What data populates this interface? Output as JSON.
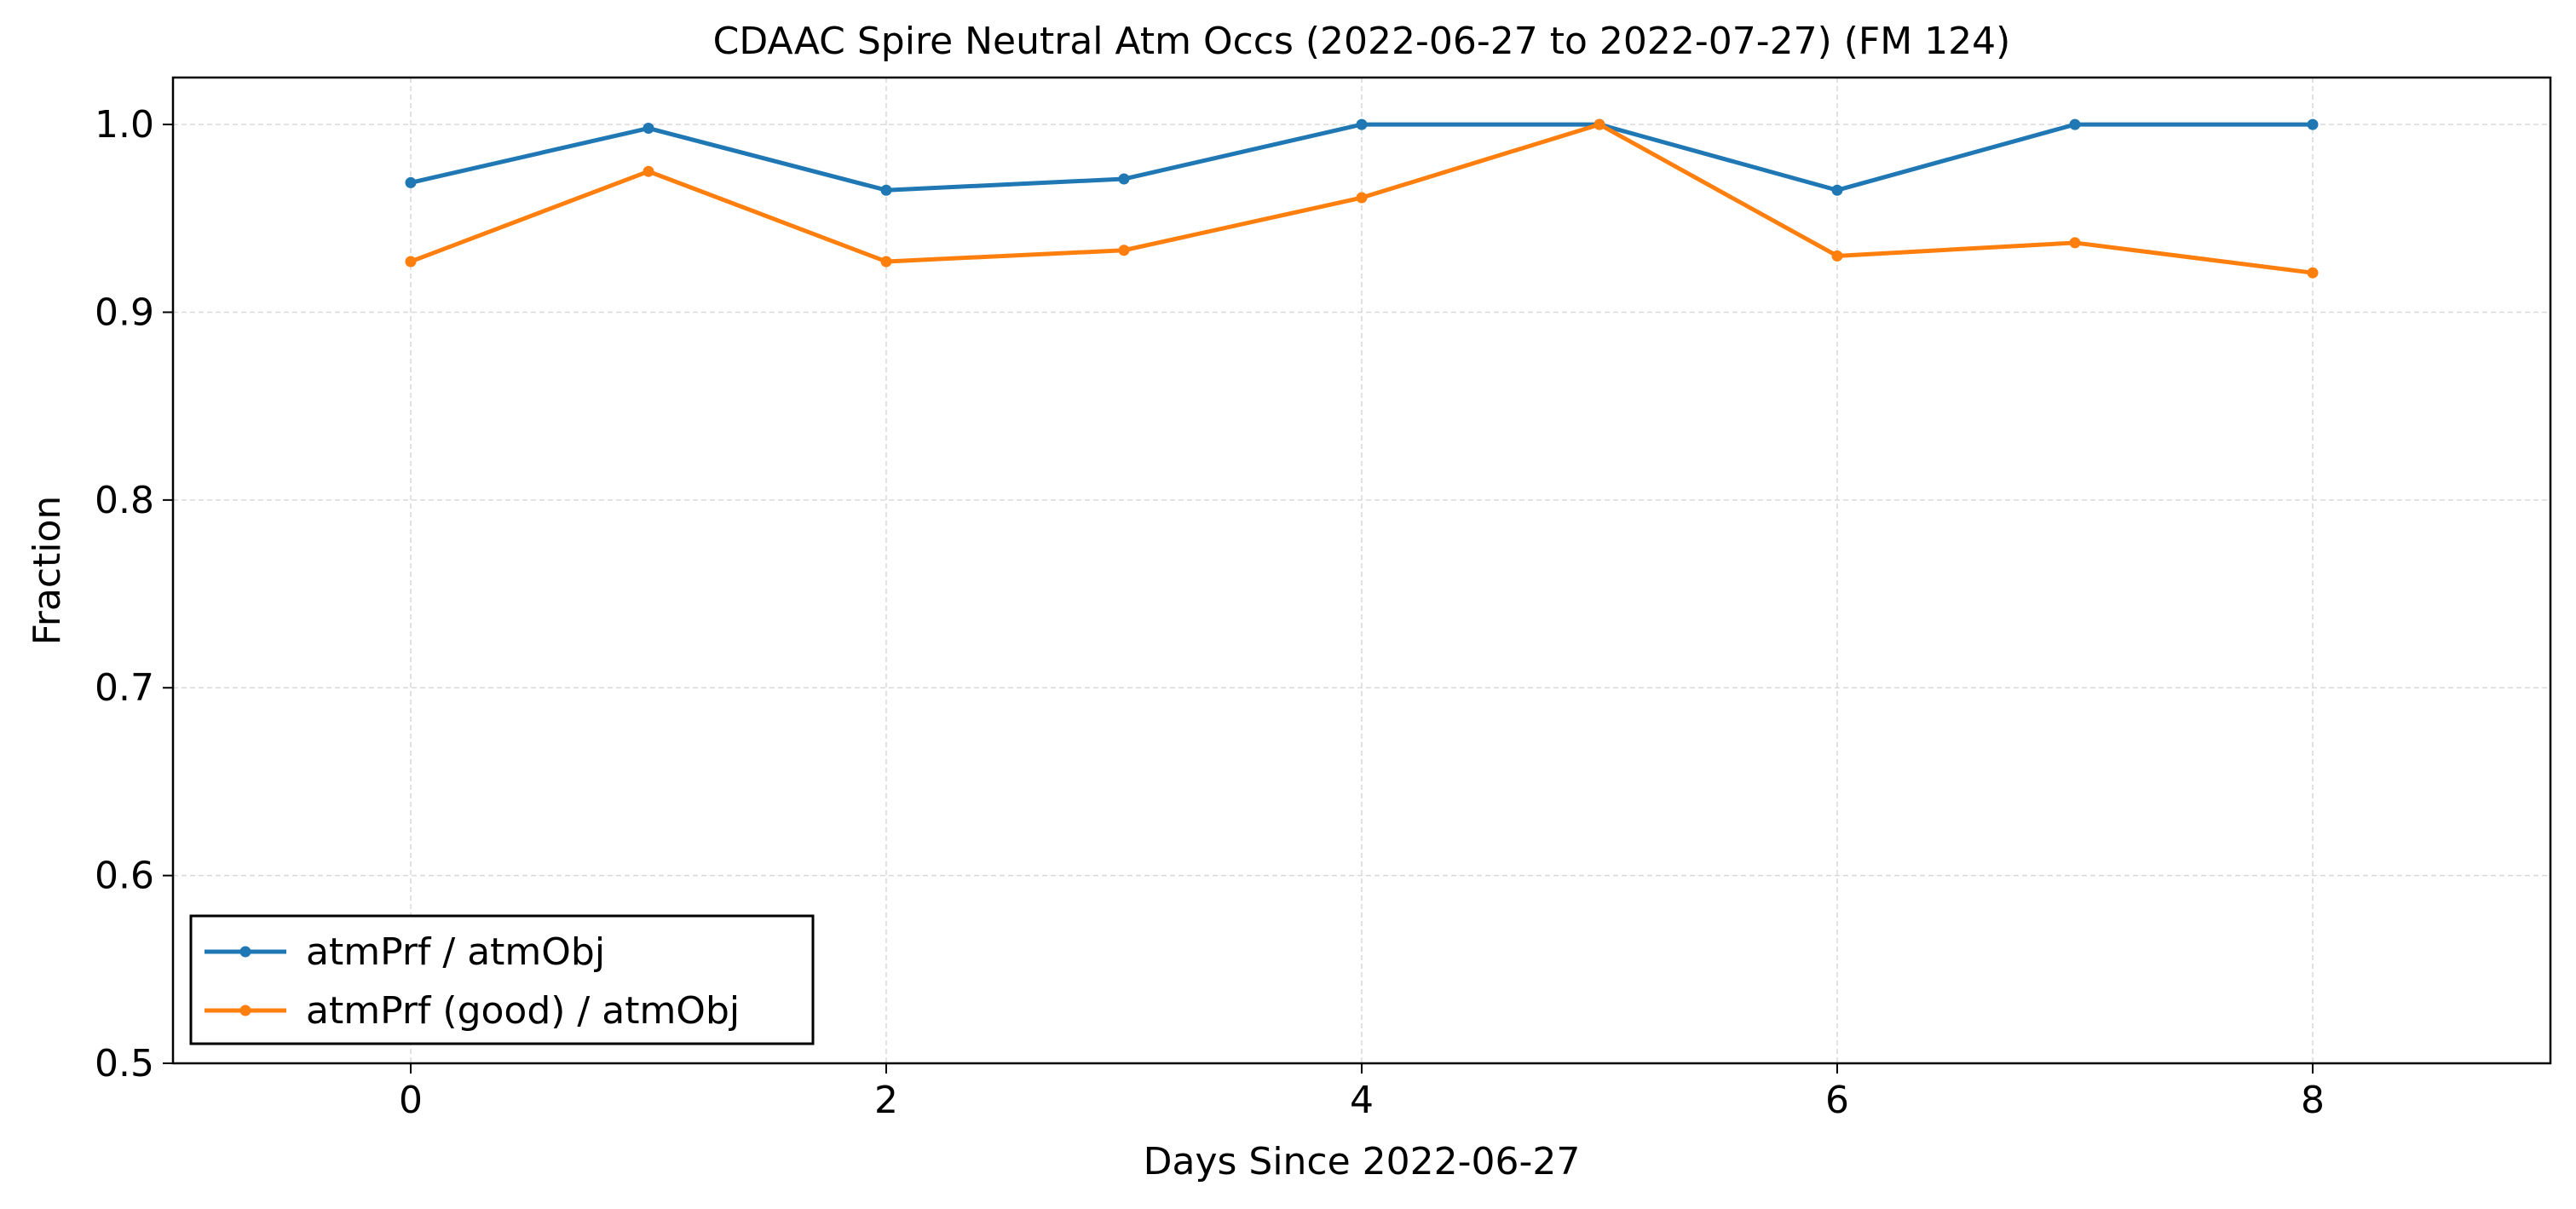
{
  "chart_data": {
    "type": "line",
    "title": "CDAAC Spire Neutral Atm Occs (2022-06-27 to 2022-07-27) (FM 124)",
    "xlabel": "Days Since 2022-06-27",
    "ylabel": "Fraction",
    "xlim": [
      -1,
      9
    ],
    "ylim": [
      0.5,
      1.025
    ],
    "xticks": [
      0,
      2,
      4,
      6,
      8
    ],
    "xtick_labels": [
      "0",
      "2",
      "4",
      "6",
      "8"
    ],
    "yticks": [
      0.5,
      0.6,
      0.7,
      0.8,
      0.9,
      1.0
    ],
    "ytick_labels": [
      "0.5",
      "0.6",
      "0.7",
      "0.8",
      "0.9",
      "1.0"
    ],
    "grid": true,
    "legend_position": "lower-left",
    "x": [
      0,
      1,
      2,
      3,
      4,
      5,
      6,
      7,
      8
    ],
    "series": [
      {
        "name": "atmPrf / atmObj",
        "color": "#1f77b4",
        "marker": "dot",
        "values": [
          0.969,
          0.998,
          0.965,
          0.971,
          1.0,
          1.0,
          0.965,
          1.0,
          1.0
        ]
      },
      {
        "name": "atmPrf (good) / atmObj",
        "color": "#ff7f0e",
        "marker": "dot",
        "values": [
          0.927,
          0.975,
          0.927,
          0.933,
          0.961,
          1.0,
          0.93,
          0.937,
          0.921
        ]
      }
    ]
  }
}
